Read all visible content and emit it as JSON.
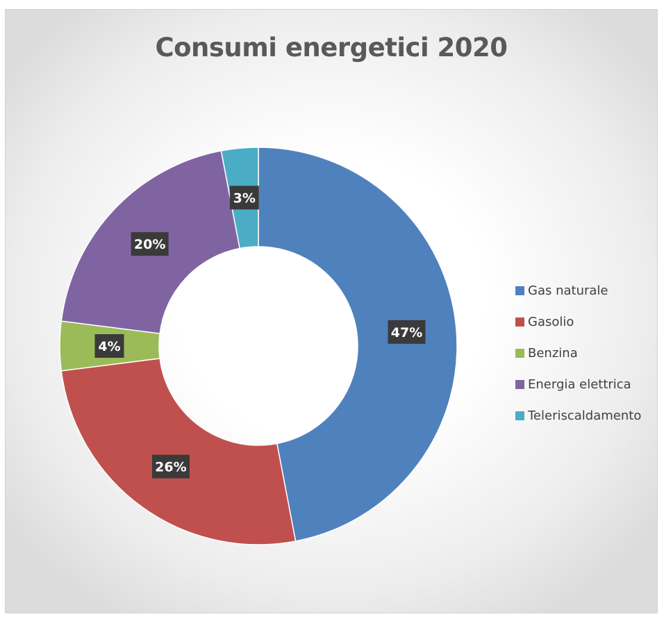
{
  "chart_data": {
    "type": "pie",
    "variant": "donut",
    "title": "Consumi energetici 2020",
    "categories": [
      "Gas naturale",
      "Gasolio",
      "Benzina",
      "Energia elettrica",
      "Teleriscaldamento"
    ],
    "values": [
      47,
      26,
      4,
      20,
      3
    ],
    "data_labels": [
      "47%",
      "26%",
      "4%",
      "20%",
      "3%"
    ],
    "colors": [
      "#4f81bd",
      "#c0504d",
      "#9bbb59",
      "#8064a2",
      "#4bacc6"
    ],
    "legend": {
      "position": "right",
      "entries": [
        "Gas naturale",
        "Gasolio",
        "Benzina",
        "Energia elettrica",
        "Teleriscaldamento"
      ]
    },
    "start_angle": "12 o'clock",
    "direction": "clockwise"
  }
}
